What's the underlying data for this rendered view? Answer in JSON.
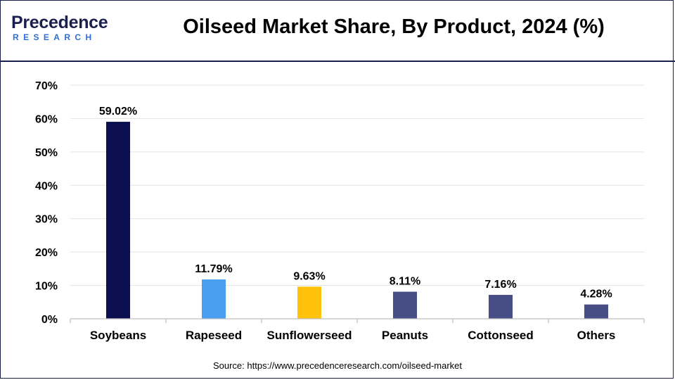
{
  "header": {
    "logo_word": "Precedence",
    "logo_sub": "RESEARCH",
    "title": "Oilseed Market Share, By Product, 2024 (%)"
  },
  "source": "Source: https://www.precedenceresearch.com/oilseed-market",
  "chart_data": {
    "type": "bar",
    "title": "Oilseed Market Share, By Product, 2024 (%)",
    "xlabel": "",
    "ylabel": "",
    "ylim": [
      0,
      70
    ],
    "yticks": [
      0,
      10,
      20,
      30,
      40,
      50,
      60,
      70
    ],
    "ytick_labels": [
      "0%",
      "10%",
      "20%",
      "30%",
      "40%",
      "50%",
      "60%",
      "70%"
    ],
    "grid": true,
    "legend": "none",
    "categories": [
      "Soybeans",
      "Rapeseed",
      "Sunflowerseed",
      "Peanuts",
      "Cottonseed",
      "Others"
    ],
    "values": [
      59.02,
      11.79,
      9.63,
      8.11,
      7.16,
      4.28
    ],
    "value_labels": [
      "59.02%",
      "11.79%",
      "9.63%",
      "8.11%",
      "7.16%",
      "4.28%"
    ],
    "colors": [
      "#0b0f4f",
      "#4a9ff0",
      "#ffc20a",
      "#474e86",
      "#474e86",
      "#474e86"
    ]
  }
}
